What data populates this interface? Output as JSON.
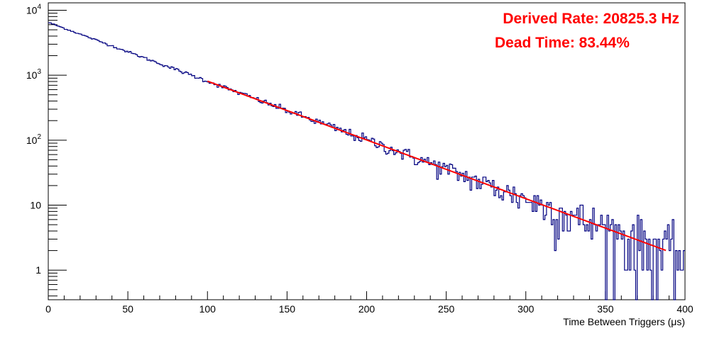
{
  "chart_data": {
    "type": "line",
    "title": "",
    "xlabel": "Time Between Triggers (μs)",
    "ylabel": "",
    "x_scale": "linear",
    "y_scale": "log",
    "xlim": [
      0,
      400
    ],
    "ylim": [
      0.35,
      13000
    ],
    "grid": false,
    "x_ticks": [
      0,
      50,
      100,
      150,
      200,
      250,
      300,
      350,
      400
    ],
    "y_ticks": [
      {
        "value": 1,
        "base": "1",
        "exp": ""
      },
      {
        "value": 10,
        "base": "10",
        "exp": ""
      },
      {
        "value": 100,
        "base": "10",
        "exp": "2"
      },
      {
        "value": 1000,
        "base": "10",
        "exp": "3"
      },
      {
        "value": 10000,
        "base": "10",
        "exp": "4"
      }
    ],
    "series": [
      {
        "kind": "histogram",
        "color": "#000080",
        "bin_width": 1,
        "x_range": [
          0,
          400
        ],
        "approx_model": {
          "amplitude_at_0": 6500,
          "slope_per_us": -0.02083,
          "description": "exponential decay read from plot"
        },
        "points": [
          [
            0,
            6500
          ],
          [
            10,
            5300
          ],
          [
            25,
            4000
          ],
          [
            50,
            2200
          ],
          [
            75,
            1300
          ],
          [
            100,
            820
          ],
          [
            125,
            520
          ],
          [
            150,
            310
          ],
          [
            175,
            190
          ],
          [
            200,
            105
          ],
          [
            225,
            70
          ],
          [
            250,
            45
          ],
          [
            275,
            28
          ],
          [
            300,
            15
          ],
          [
            325,
            9
          ],
          [
            350,
            5
          ],
          [
            375,
            3
          ],
          [
            400,
            2
          ]
        ]
      },
      {
        "kind": "fit",
        "color": "#ff0000",
        "x_range": [
          100,
          388
        ],
        "approx_model": {
          "amplitude_at_0": 6500,
          "slope_per_us": -0.02083
        },
        "points": [
          [
            100,
            810
          ],
          [
            150,
            285
          ],
          [
            200,
            100
          ],
          [
            250,
            35
          ],
          [
            300,
            12.5
          ],
          [
            350,
            4.4
          ],
          [
            388,
            2.1
          ]
        ]
      }
    ],
    "annotations": [
      {
        "text": "Derived Rate: 20825.3 Hz",
        "color": "#ff0000",
        "placement": "top-right"
      },
      {
        "text": "Dead Time: 83.44%",
        "color": "#ff0000",
        "placement": "top-right"
      }
    ],
    "legend": "none"
  }
}
